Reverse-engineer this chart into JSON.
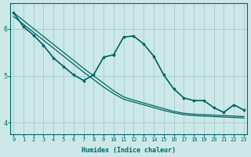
{
  "xlabel": "Humidex (Indice chaleur)",
  "ylabel": "",
  "background_color": "#cce8e8",
  "grid_color": "#aacfcf",
  "line_color": "#006666",
  "x_values": [
    0,
    1,
    2,
    3,
    4,
    5,
    6,
    7,
    8,
    9,
    10,
    11,
    12,
    13,
    14,
    15,
    16,
    17,
    18,
    19,
    20,
    21,
    22,
    23
  ],
  "line1_y": [
    6.35,
    6.05,
    5.87,
    5.65,
    5.38,
    5.2,
    5.02,
    4.9,
    5.02,
    5.4,
    5.45,
    5.83,
    5.85,
    5.68,
    5.42,
    5.02,
    4.72,
    4.53,
    4.47,
    4.47,
    4.32,
    4.22,
    4.38,
    4.27
  ],
  "line2_y": [
    6.35,
    6.05,
    5.87,
    5.65,
    5.38,
    5.2,
    5.02,
    4.9,
    5.02,
    5.4,
    5.45,
    5.83,
    5.85,
    5.68,
    5.42,
    5.02,
    4.72,
    4.53,
    4.47,
    4.47,
    4.32,
    4.22,
    4.38,
    4.27
  ],
  "trend1_y": [
    6.35,
    6.18,
    6.01,
    5.84,
    5.67,
    5.5,
    5.33,
    5.16,
    5.0,
    4.84,
    4.68,
    4.55,
    4.48,
    4.42,
    4.36,
    4.3,
    4.24,
    4.2,
    4.18,
    4.17,
    4.16,
    4.15,
    4.14,
    4.13
  ],
  "trend2_y": [
    6.27,
    6.1,
    5.93,
    5.76,
    5.59,
    5.42,
    5.25,
    5.08,
    4.92,
    4.76,
    4.62,
    4.5,
    4.44,
    4.38,
    4.32,
    4.26,
    4.21,
    4.17,
    4.15,
    4.14,
    4.13,
    4.12,
    4.11,
    4.1
  ],
  "ylim": [
    3.75,
    6.55
  ],
  "yticks": [
    4,
    5,
    6
  ],
  "xticks": [
    0,
    1,
    2,
    3,
    4,
    5,
    6,
    7,
    8,
    9,
    10,
    11,
    12,
    13,
    14,
    15,
    16,
    17,
    18,
    19,
    20,
    21,
    22,
    23
  ]
}
